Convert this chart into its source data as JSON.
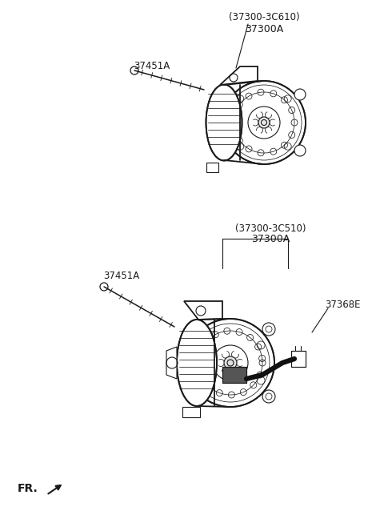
{
  "background_color": "#ffffff",
  "fig_width": 4.8,
  "fig_height": 6.43,
  "dpi": 100,
  "labels": {
    "top_part_main": "(37300-3C610)",
    "top_part_sub": "37300A",
    "top_bolt": "37451A",
    "bot_part_main": "(37300-3C510)",
    "bot_part_sub": "37300A",
    "bot_bolt": "37451A",
    "bot_connector": "37368E",
    "fr": "FR."
  },
  "text_color": "#1a1a1a",
  "line_color": "#1a1a1a",
  "font_size_label": 8.5,
  "font_size_fr": 10
}
